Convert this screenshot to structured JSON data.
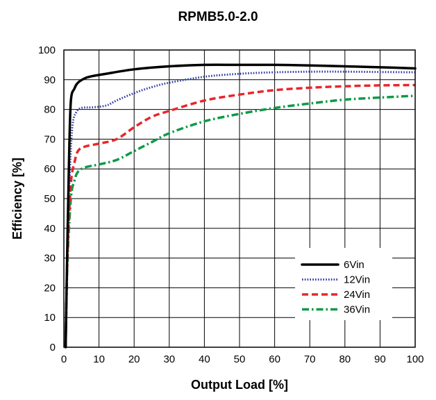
{
  "chart_data": {
    "type": "line",
    "title": "RPMB5.0-2.0",
    "xlabel": "Output Load [%]",
    "ylabel": "Efficiency [%]",
    "xlim": [
      0,
      100
    ],
    "ylim": [
      0,
      100
    ],
    "x_ticks": [
      0,
      10,
      20,
      30,
      40,
      50,
      60,
      70,
      80,
      90,
      100
    ],
    "y_ticks": [
      0,
      10,
      20,
      30,
      40,
      50,
      60,
      70,
      80,
      90,
      100
    ],
    "grid": true,
    "legend_position": "bottom-right",
    "series": [
      {
        "name": "6Vin",
        "color": "#000000",
        "dash": "solid",
        "points": [
          [
            0.5,
            0
          ],
          [
            1,
            35
          ],
          [
            1.5,
            65
          ],
          [
            2,
            83
          ],
          [
            3,
            87
          ],
          [
            4,
            89
          ],
          [
            6,
            90.5
          ],
          [
            8,
            91.2
          ],
          [
            12,
            92
          ],
          [
            20,
            93.5
          ],
          [
            30,
            94.5
          ],
          [
            40,
            95
          ],
          [
            50,
            95
          ],
          [
            60,
            95
          ],
          [
            70,
            94.8
          ],
          [
            80,
            94.5
          ],
          [
            90,
            94.2
          ],
          [
            100,
            93.8
          ]
        ]
      },
      {
        "name": "12Vin",
        "color": "#2a3d9c",
        "dash": "dotted",
        "points": [
          [
            0.5,
            0
          ],
          [
            1,
            35
          ],
          [
            1.8,
            62
          ],
          [
            2.5,
            75
          ],
          [
            3.5,
            79
          ],
          [
            5,
            80.5
          ],
          [
            8,
            80.7
          ],
          [
            12,
            81.3
          ],
          [
            15,
            83
          ],
          [
            20,
            85.5
          ],
          [
            25,
            87.5
          ],
          [
            30,
            89
          ],
          [
            40,
            91
          ],
          [
            50,
            92
          ],
          [
            60,
            92.5
          ],
          [
            70,
            92.7
          ],
          [
            80,
            92.7
          ],
          [
            90,
            92.6
          ],
          [
            100,
            92.5
          ]
        ]
      },
      {
        "name": "24Vin",
        "color": "#e8262b",
        "dash": "dashed",
        "points": [
          [
            0.5,
            0
          ],
          [
            1,
            30
          ],
          [
            2,
            55
          ],
          [
            3,
            62
          ],
          [
            4,
            66
          ],
          [
            6,
            67.5
          ],
          [
            10,
            68.5
          ],
          [
            15,
            70
          ],
          [
            20,
            74
          ],
          [
            25,
            77.5
          ],
          [
            30,
            79.5
          ],
          [
            40,
            83
          ],
          [
            50,
            85
          ],
          [
            60,
            86.5
          ],
          [
            70,
            87.3
          ],
          [
            80,
            87.8
          ],
          [
            90,
            88.1
          ],
          [
            100,
            88.2
          ]
        ]
      },
      {
        "name": "36Vin",
        "color": "#0d9a48",
        "dash": "dashdot",
        "points": [
          [
            0.5,
            0
          ],
          [
            1,
            28
          ],
          [
            2,
            50
          ],
          [
            3,
            56
          ],
          [
            4,
            59
          ],
          [
            6,
            60.5
          ],
          [
            10,
            61.5
          ],
          [
            15,
            63
          ],
          [
            20,
            66
          ],
          [
            25,
            69
          ],
          [
            30,
            72
          ],
          [
            40,
            76
          ],
          [
            50,
            78.5
          ],
          [
            60,
            80.5
          ],
          [
            70,
            82
          ],
          [
            80,
            83.3
          ],
          [
            90,
            84
          ],
          [
            100,
            84.6
          ]
        ]
      }
    ]
  }
}
